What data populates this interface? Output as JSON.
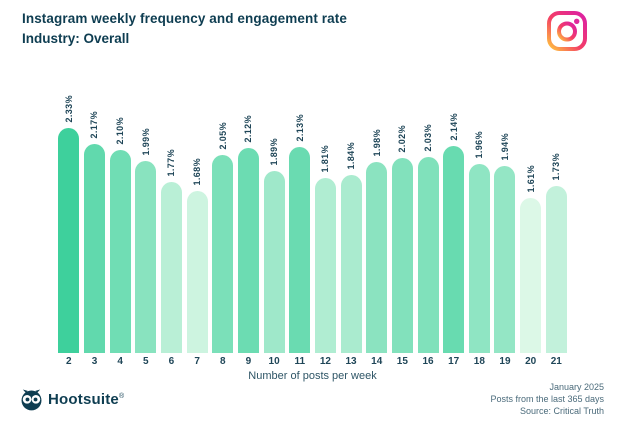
{
  "header": {
    "title": "Instagram weekly frequency and engagement rate",
    "subtitle": "Industry: Overall",
    "logo_icon": "instagram-logo"
  },
  "chart_data": {
    "type": "bar",
    "title": "Instagram weekly frequency and engagement rate",
    "subtitle": "Industry: Overall",
    "categories": [
      "2",
      "3",
      "4",
      "5",
      "6",
      "7",
      "8",
      "9",
      "10",
      "11",
      "12",
      "13",
      "14",
      "15",
      "16",
      "17",
      "18",
      "19",
      "20",
      "21"
    ],
    "values": [
      2.33,
      2.17,
      2.1,
      1.99,
      1.77,
      1.68,
      2.05,
      2.12,
      1.89,
      2.13,
      1.81,
      1.84,
      1.98,
      2.02,
      2.03,
      2.14,
      1.96,
      1.94,
      1.61,
      1.73
    ],
    "labels": [
      "2.33%",
      "2.17%",
      "2.10%",
      "1.99%",
      "1.77%",
      "1.68%",
      "2.05%",
      "2.12%",
      "1.89%",
      "2.13%",
      "1.81%",
      "1.84%",
      "1.98%",
      "2.02%",
      "2.03%",
      "2.14%",
      "1.96%",
      "1.94%",
      "1.61%",
      "1.73%"
    ],
    "xlabel": "Number of posts per week",
    "ylabel": "",
    "ylim": [
      0,
      2.33
    ],
    "grid": false,
    "legend": "none",
    "value_label_rotation": "vertical",
    "color_scale": {
      "min_color": "#dcf8e7",
      "max_color": "#3ed09c",
      "domain": [
        1.61,
        2.33
      ]
    }
  },
  "footer": {
    "brand": "Hootsuite",
    "brand_mark": "®",
    "notes": [
      "January 2025",
      "Posts from the last 365 days",
      "Source: Critical Truth"
    ]
  },
  "colors": {
    "title_text": "#0e3d51",
    "tick_text": "#1e4557",
    "footnote_text": "#4b6b7b",
    "instagram_gradient": [
      "#FFC53D",
      "#F43E65",
      "#DB20A6"
    ]
  }
}
